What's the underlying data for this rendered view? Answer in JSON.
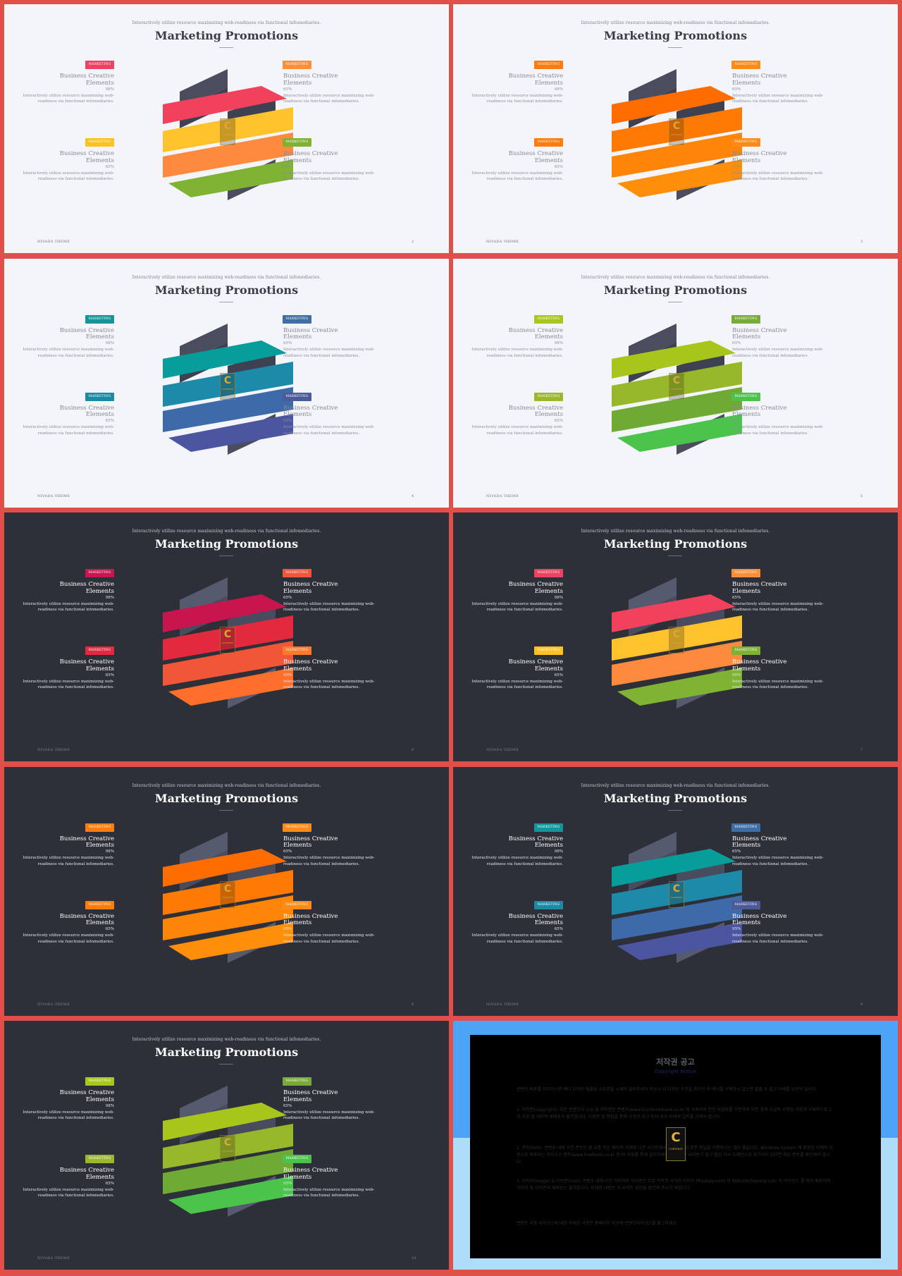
{
  "deck": {
    "subtitle": "Interactively utilize resource maximizing web-readiness via functional infomediaries.",
    "title": "Marketing Promotions",
    "footer": "NIVADA THEME",
    "tag_label": "MARKETING",
    "item_heading_line1": "Business Creative",
    "item_heading_line2": "Elements",
    "left_desc_line1": "Interactively utilize resource maximizing web-",
    "left_desc_line2": "readiness via functional infomediaries.",
    "right_desc_line1": "Interactively utilize resource maximizing web-",
    "right_desc_line2": "readiness via functional infomediaries.",
    "watermark_letter": "C",
    "watermark_text": "CONTENTS"
  },
  "slides": [
    {
      "theme": "light",
      "page": "2",
      "colors": [
        "#f2415c",
        "#fdc22c",
        "#fd8a3d",
        "#80b234"
      ],
      "tag_colors": [
        "#ef4160",
        "#fd8f3a",
        "#fdc122",
        "#7fb135"
      ],
      "percents": [
        "98%",
        "65%",
        "65%",
        "95%"
      ]
    },
    {
      "theme": "light",
      "page": "3",
      "colors": [
        "#ff6d00",
        "#ff7a04",
        "#ff8508",
        "#ff8f0a"
      ],
      "tag_colors": [
        "#fd7c10",
        "#fe8b17",
        "#fd7c10",
        "#fe8b17"
      ],
      "percents": [
        "98%",
        "65%",
        "65%",
        "95%"
      ]
    },
    {
      "theme": "light",
      "page": "4",
      "colors": [
        "#069d9b",
        "#1d8aa9",
        "#3d6aa8",
        "#4c56a0"
      ],
      "tag_colors": [
        "#139599",
        "#3f6fa2",
        "#1d8aa4",
        "#4c5a98"
      ],
      "percents": [
        "98%",
        "65%",
        "65%",
        "95%"
      ]
    },
    {
      "theme": "light",
      "page": "5",
      "colors": [
        "#a8c51c",
        "#96b82a",
        "#6fab34",
        "#4cc44c"
      ],
      "tag_colors": [
        "#a9c61f",
        "#79ab39",
        "#9bb62f",
        "#4cc24c"
      ],
      "percents": [
        "98%",
        "65%",
        "65%",
        "95%"
      ]
    },
    {
      "theme": "dark",
      "page": "6",
      "colors": [
        "#c8154d",
        "#e2293e",
        "#f25639",
        "#fd6f2a"
      ],
      "tag_colors": [
        "#c8164e",
        "#f2563a",
        "#e2293e",
        "#fd7a2c"
      ],
      "percents": [
        "98%",
        "65%",
        "65%",
        "95%"
      ]
    },
    {
      "theme": "dark",
      "page": "7",
      "colors": [
        "#f2415c",
        "#fdc22c",
        "#fd8a3d",
        "#80b234"
      ],
      "tag_colors": [
        "#ef4160",
        "#fd8f3a",
        "#fdc122",
        "#7fb135"
      ],
      "percents": [
        "98%",
        "65%",
        "65%",
        "95%"
      ]
    },
    {
      "theme": "dark",
      "page": "8",
      "colors": [
        "#ff6d00",
        "#ff7a04",
        "#ff8508",
        "#ff8f0a"
      ],
      "tag_colors": [
        "#fd7c10",
        "#fe8b17",
        "#fd7c10",
        "#fe8b17"
      ],
      "percents": [
        "98%",
        "65%",
        "65%",
        "95%"
      ]
    },
    {
      "theme": "dark",
      "page": "9",
      "colors": [
        "#069d9b",
        "#1d8aa9",
        "#3d6aa8",
        "#4c56a0"
      ],
      "tag_colors": [
        "#139599",
        "#3f6fa2",
        "#1d8aa4",
        "#4c5a98"
      ],
      "percents": [
        "98%",
        "65%",
        "65%",
        "95%"
      ]
    },
    {
      "theme": "dark",
      "page": "10",
      "colors": [
        "#a8c51c",
        "#96b82a",
        "#6fab34",
        "#4cc44c"
      ],
      "tag_colors": [
        "#a9c61f",
        "#79ab39",
        "#9bb62f",
        "#4cc24c"
      ],
      "percents": [
        "98%",
        "65%",
        "65%",
        "95%"
      ]
    }
  ],
  "copyright": {
    "title": "저작권 공고",
    "subtitle": "Copyright Notice",
    "paragraphs": [
      "콘텐츠 배포를 지지하시면 배너 디자인 템플릿 소유권을 시세미 알려주셔야 하오니 위 디자인 조건을 지키신 후 배너를 구매하시 않으면 팔할 수 없고 아래를 당관의 일이다.",
      "1. 저작권(copyright): 모든 콘텐츠의 소유 및 저작권은 콘텐츠(www.)Contentsbank.co.kr 에 귀속되며 연관 사업자를 구분하여 모든 경계 소급적 수정된 사항과 구체적으로 2차 가공 및 내부적 재배포가 불가합니다. 이용관 및 편집을 통해 규정한 로고 등의 경우 아래에 일치를 가져야 합니다.",
      "2. 폰트(font): 콘텐츠 내에 쓰인 폰트는 원 유통 되는 베이직 서체로 나온 사이트에서 문구가 작업 표준 파일을 이용하시는 것이 좋습니다. Windows System 에 포함된 서체와 공용으로 배포되는 프리소스 폰트(www.freefonts.co.kr 등)의 자료를 통해 설치하세요. 콘텐츠의 내려받기 않고 팝업 자사 도메인으로 표기되어 있다면 해당 폰트를 확인해야 합니다.",
      "3. 이미지(image) & 아이콘(icon): 콘텐츠 내에 쓰인 이미지와 아이콘은 무료 저작권 사이트 이미지 (Pixabay.com) 와 Websitecleaning.com 의 라이선스 를 따라 배포되며 이미지 및 아이콘의 재배포는 불가합니다. 자세한 내용은 각 사이트 원문을 확인해 주시기 바랍니다.",
      "콘텐츠 사용 라이선스에 대한 자세한 사항은 홈페이지 하단에 콘텐츠라이선스를 참고하세요."
    ]
  }
}
